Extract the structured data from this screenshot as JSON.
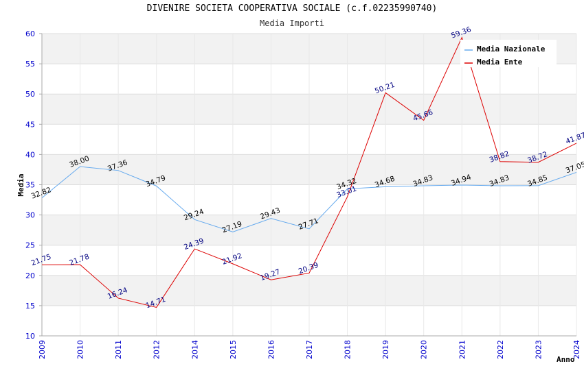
{
  "chart_data": {
    "type": "line",
    "title": "DIVENIRE SOCIETA COOPERATIVA SOCIALE (c.f.02235990740)",
    "subtitle": "Media Importi",
    "xlabel": "Anno",
    "ylabel": "Media",
    "ylim": [
      10,
      60
    ],
    "yticks": [
      10,
      15,
      20,
      25,
      30,
      35,
      40,
      45,
      50,
      55,
      60
    ],
    "categories": [
      "2009",
      "2010",
      "2011",
      "2012",
      "2014",
      "2015",
      "2016",
      "2017",
      "2018",
      "2019",
      "2020",
      "2021",
      "2022",
      "2023",
      "2024"
    ],
    "series": [
      {
        "name": "Media Nazionale",
        "color": "#66aaee",
        "label_color": "#000000",
        "values": [
          32.82,
          38.0,
          37.36,
          34.79,
          29.24,
          27.19,
          29.43,
          27.71,
          34.32,
          34.68,
          34.83,
          34.94,
          34.83,
          34.85,
          37.05
        ],
        "labels": [
          "32.82",
          "38.00",
          "37.36",
          "34.79",
          "29.24",
          "27.19",
          "29.43",
          "27.71",
          "34.32",
          "34.68",
          "34.83",
          "34.94",
          "34.83",
          "34.85",
          "37.05"
        ]
      },
      {
        "name": "Media Ente",
        "color": "#dd0000",
        "label_color": "#000080",
        "values": [
          21.75,
          21.78,
          16.24,
          14.71,
          24.39,
          21.92,
          19.27,
          20.39,
          33.01,
          50.21,
          45.66,
          59.36,
          38.82,
          38.72,
          41.87
        ],
        "labels": [
          "21.75",
          "21.78",
          "16.24",
          "14.71",
          "24.39",
          "21.92",
          "19.27",
          "20.39",
          "33.01",
          "50.21",
          "45.66",
          "59.36",
          "38.82",
          "38.72",
          "41.87"
        ]
      }
    ],
    "grid": true,
    "legend_position": "top-right",
    "background_bands": [
      "#f2f2f2",
      "#ffffff"
    ]
  }
}
